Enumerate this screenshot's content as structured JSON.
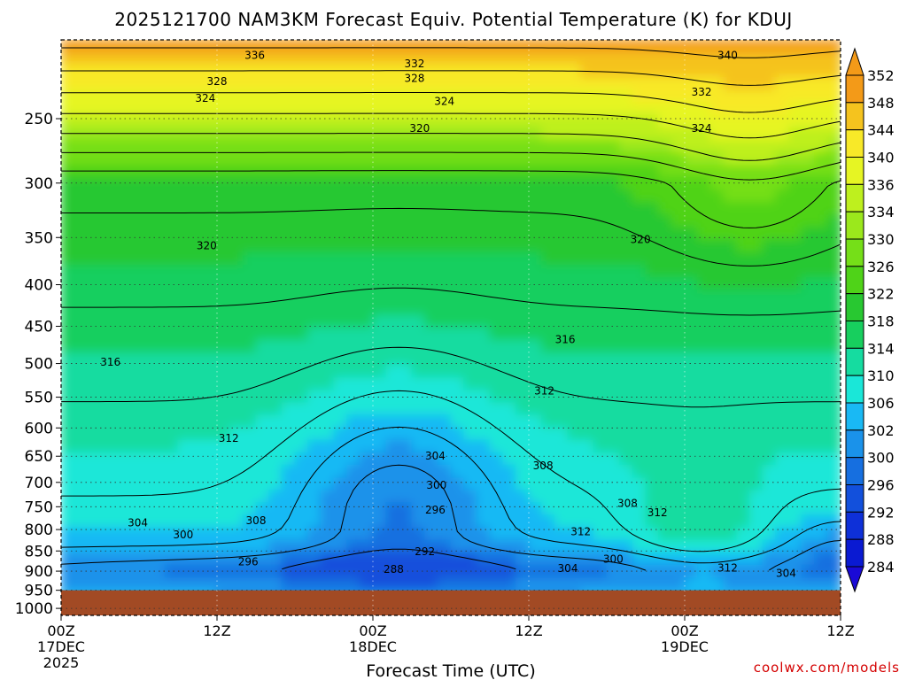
{
  "chart_data": {
    "type": "heatmap",
    "title": "2025121700 NAM3KM Forecast Equiv. Potential Temperature (K) for KDUJ",
    "xlabel": "Forecast Time (UTC)",
    "ylabel": "",
    "credit": "coolwx.com/models",
    "y_scale": "log",
    "y_reversed": true,
    "ylim": [
      1020,
      200
    ],
    "y_ticks": [
      250,
      300,
      350,
      400,
      450,
      500,
      550,
      600,
      650,
      700,
      750,
      800,
      850,
      900,
      950,
      1000
    ],
    "y_tick_labels": [
      "250",
      "300",
      "350",
      "400",
      "450",
      "500",
      "550",
      "600",
      "650",
      "700",
      "750",
      "800",
      "850",
      "900",
      "950",
      "1000"
    ],
    "x_ticks": [
      {
        "hour": 0,
        "line1": "00Z",
        "line2": "17DEC",
        "line3": "2025"
      },
      {
        "hour": 12,
        "line1": "12Z",
        "line2": "",
        "line3": ""
      },
      {
        "hour": 24,
        "line1": "00Z",
        "line2": "18DEC",
        "line3": ""
      },
      {
        "hour": 36,
        "line1": "12Z",
        "line2": "",
        "line3": ""
      },
      {
        "hour": 48,
        "line1": "00Z",
        "line2": "19DEC",
        "line3": ""
      },
      {
        "hour": 60,
        "line1": "12Z",
        "line2": "",
        "line3": ""
      }
    ],
    "xlim": [
      0,
      60
    ],
    "grid": true,
    "colorbar": {
      "labels": [
        "352",
        "348",
        "344",
        "340",
        "336",
        "334",
        "330",
        "326",
        "322",
        "318",
        "314",
        "310",
        "306",
        "302",
        "300",
        "296",
        "292",
        "288",
        "284"
      ],
      "colors": [
        "#f39a18",
        "#f5c31e",
        "#f8e928",
        "#e6f523",
        "#bef01e",
        "#9be81c",
        "#75df18",
        "#4fd318",
        "#28c831",
        "#17cf5e",
        "#15dca0",
        "#1ae7d8",
        "#19b9f4",
        "#1a92ea",
        "#166fe0",
        "#1250dc",
        "#0e30d8",
        "#0a1ad2",
        "#1a0ad6"
      ],
      "extend_max": true,
      "extend_min": true
    },
    "contour_labels": [
      {
        "text": "336",
        "hour": 14.9,
        "p": 209
      },
      {
        "text": "328",
        "hour": 12.0,
        "p": 225
      },
      {
        "text": "324",
        "hour": 11.1,
        "p": 236
      },
      {
        "text": "332",
        "hour": 27.2,
        "p": 214
      },
      {
        "text": "328",
        "hour": 27.2,
        "p": 223
      },
      {
        "text": "324",
        "hour": 29.5,
        "p": 238
      },
      {
        "text": "320",
        "hour": 27.6,
        "p": 257
      },
      {
        "text": "340",
        "hour": 51.3,
        "p": 209
      },
      {
        "text": "332",
        "hour": 49.3,
        "p": 232
      },
      {
        "text": "324",
        "hour": 49.3,
        "p": 257
      },
      {
        "text": "320",
        "hour": 11.2,
        "p": 358
      },
      {
        "text": "320",
        "hour": 44.6,
        "p": 352
      },
      {
        "text": "316",
        "hour": 3.8,
        "p": 498
      },
      {
        "text": "316",
        "hour": 38.8,
        "p": 467
      },
      {
        "text": "312",
        "hour": 12.9,
        "p": 618
      },
      {
        "text": "312",
        "hour": 37.2,
        "p": 540
      },
      {
        "text": "304",
        "hour": 28.8,
        "p": 650
      },
      {
        "text": "308",
        "hour": 37.1,
        "p": 668
      },
      {
        "text": "300",
        "hour": 28.9,
        "p": 706
      },
      {
        "text": "296",
        "hour": 28.8,
        "p": 757
      },
      {
        "text": "308",
        "hour": 15.0,
        "p": 780
      },
      {
        "text": "304",
        "hour": 5.9,
        "p": 785
      },
      {
        "text": "300",
        "hour": 9.4,
        "p": 812
      },
      {
        "text": "292",
        "hour": 28.0,
        "p": 852
      },
      {
        "text": "296",
        "hour": 14.4,
        "p": 876
      },
      {
        "text": "288",
        "hour": 25.6,
        "p": 895
      },
      {
        "text": "308",
        "hour": 43.6,
        "p": 743
      },
      {
        "text": "312",
        "hour": 45.9,
        "p": 763
      },
      {
        "text": "312",
        "hour": 40.0,
        "p": 805
      },
      {
        "text": "300",
        "hour": 42.5,
        "p": 870
      },
      {
        "text": "304",
        "hour": 39.0,
        "p": 893
      },
      {
        "text": "312",
        "hour": 51.3,
        "p": 892
      },
      {
        "text": "304",
        "hour": 55.8,
        "p": 905
      }
    ],
    "ground_pressure": 950
  }
}
